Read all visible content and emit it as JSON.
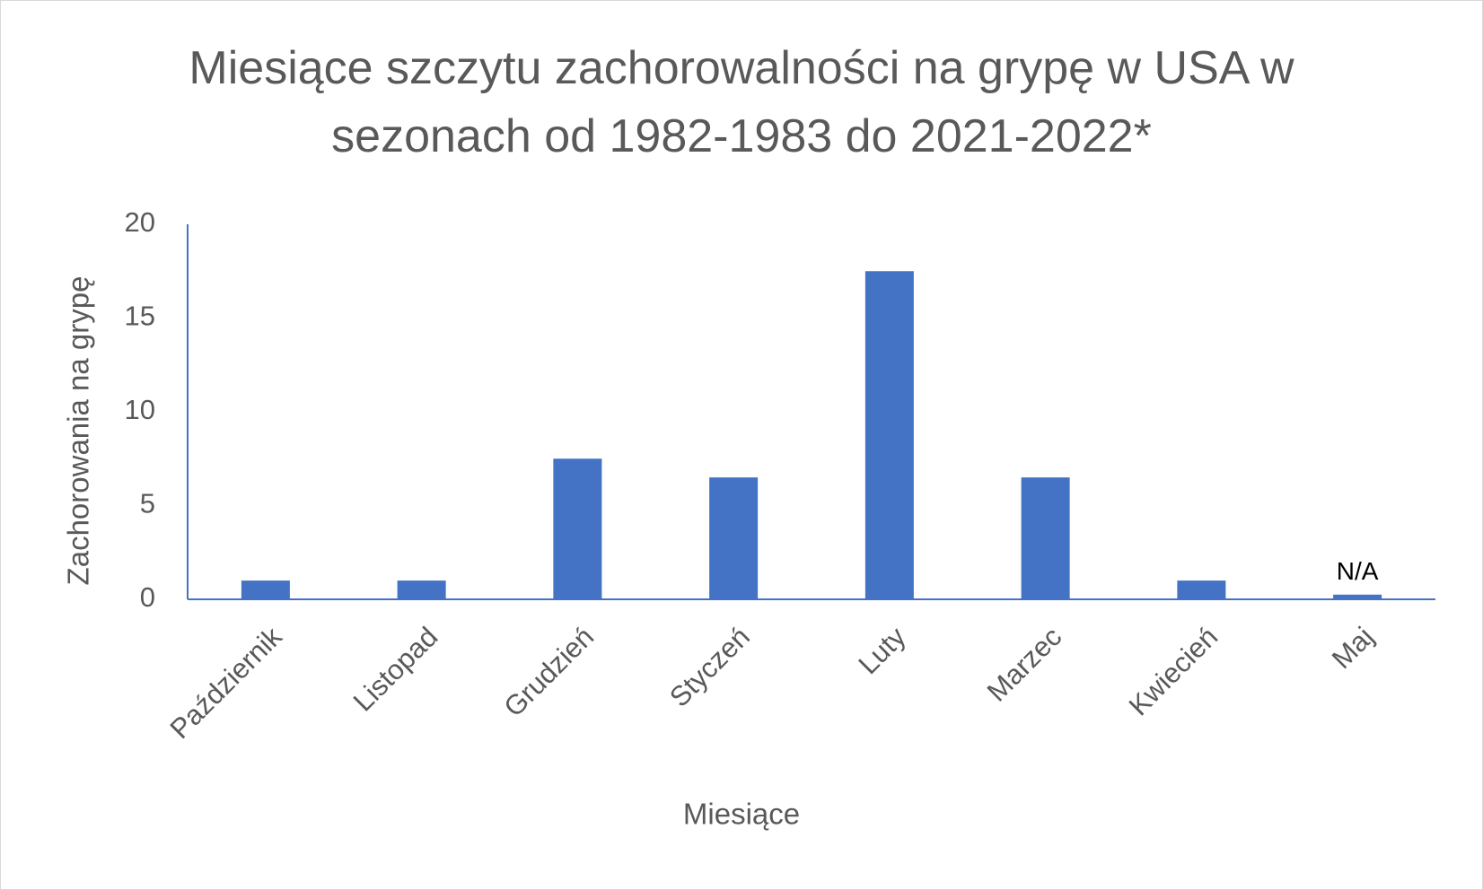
{
  "chart_data": {
    "type": "bar",
    "title": "Miesiące szczytu zachorowalności na grypę w USA w sezonach od 1982-1983 do 2021-2022*",
    "x_label": "Miesiące",
    "y_label": "Zachorowania na grypę",
    "categories": [
      "Październik",
      "Listopad",
      "Grudzień",
      "Styczeń",
      "Luty",
      "Marzec",
      "Kwiecień",
      "Maj"
    ],
    "values": [
      1,
      1,
      7.5,
      6.5,
      17.5,
      6.5,
      1,
      0.25
    ],
    "value_labels": [
      null,
      null,
      null,
      null,
      null,
      null,
      null,
      "N/A"
    ],
    "color": "#4472c4",
    "ylim": [
      0,
      20
    ],
    "yticks": [
      0,
      5,
      10,
      15,
      20
    ],
    "grid": false
  }
}
